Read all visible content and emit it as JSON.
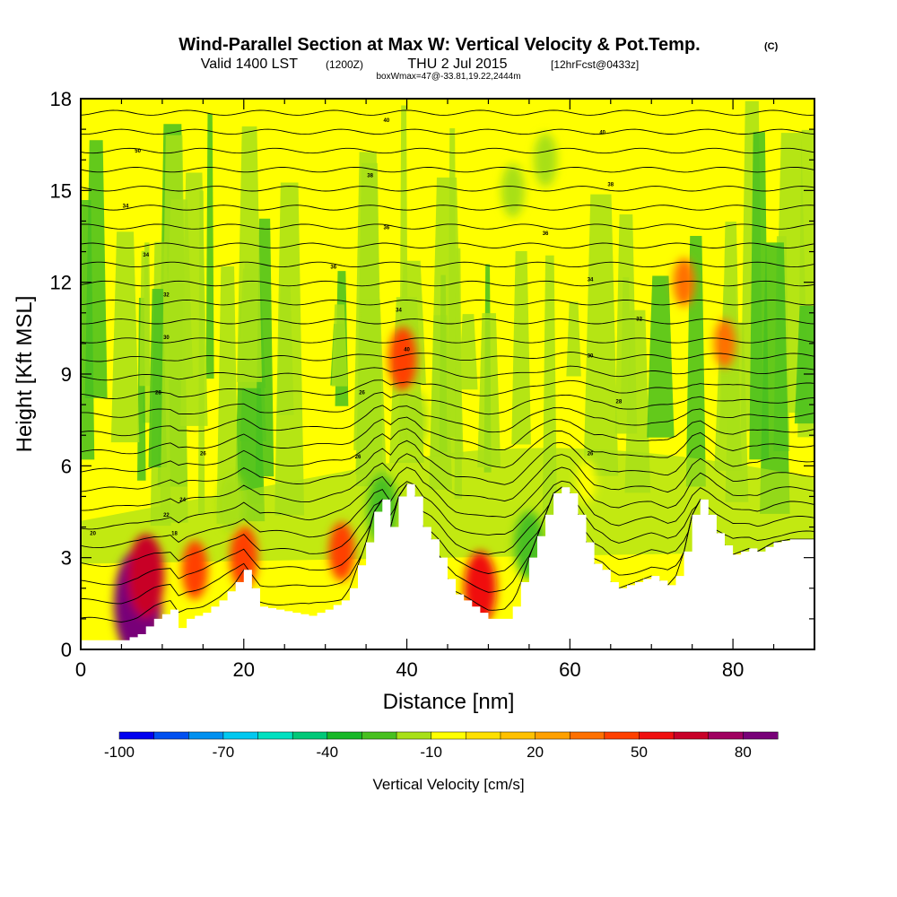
{
  "chart_data": {
    "type": "heatmap",
    "title": "Wind-Parallel Section at Max W: Vertical Velocity & Pot.Temp.",
    "title_mark": "(C)",
    "subtitle_main": "Valid 1400 LST",
    "subtitle_z": "(1200Z)",
    "subtitle_date": "THU 2 Jul 2015",
    "subtitle_fcst": "[12hrFcst@0433z]",
    "box_info": "boxWmax=47@-33.81,19.22,2444m",
    "xlabel": "Distance [nm]",
    "ylabel": "Height [Kft MSL]",
    "xlim": [
      0,
      90
    ],
    "ylim": [
      0,
      18
    ],
    "x_ticks": [
      "0",
      "20",
      "40",
      "60",
      "80"
    ],
    "y_ticks": [
      "0",
      "3",
      "6",
      "9",
      "12",
      "15",
      "18"
    ],
    "colorbar": {
      "label": "Vertical Velocity [cm/s]",
      "tick_labels": [
        "-100",
        "-70",
        "-40",
        "-10",
        "20",
        "50",
        "80"
      ],
      "colors": [
        "#0000f0",
        "#0050f0",
        "#0090f0",
        "#00c8f0",
        "#00e0c0",
        "#00c878",
        "#18b828",
        "#48c020",
        "#a8e018",
        "#ffff00",
        "#ffe000",
        "#ffc000",
        "#ffa000",
        "#ff7000",
        "#ff4000",
        "#f01010",
        "#c80028",
        "#a00060",
        "#780078"
      ]
    },
    "terrain_kft": [
      [
        0,
        0.3
      ],
      [
        5,
        0.3
      ],
      [
        7,
        0.5
      ],
      [
        9,
        1.0
      ],
      [
        11,
        1.3
      ],
      [
        12,
        0.7
      ],
      [
        13,
        1.0
      ],
      [
        15,
        1.2
      ],
      [
        17,
        1.6
      ],
      [
        19,
        2.2
      ],
      [
        20,
        2.6
      ],
      [
        21,
        2.0
      ],
      [
        22,
        1.4
      ],
      [
        24,
        1.3
      ],
      [
        26,
        1.2
      ],
      [
        28,
        1.1
      ],
      [
        30,
        1.3
      ],
      [
        32,
        1.6
      ],
      [
        33,
        2.0
      ],
      [
        35,
        3.5
      ],
      [
        36,
        4.5
      ],
      [
        37,
        4.9
      ],
      [
        38,
        4.0
      ],
      [
        39,
        5.0
      ],
      [
        40,
        5.4
      ],
      [
        41,
        5.0
      ],
      [
        42,
        4.0
      ],
      [
        43,
        3.6
      ],
      [
        44,
        3.0
      ],
      [
        45,
        2.3
      ],
      [
        46,
        1.8
      ],
      [
        47,
        1.6
      ],
      [
        48,
        1.4
      ],
      [
        49,
        1.2
      ],
      [
        50,
        1.0
      ],
      [
        52,
        1.0
      ],
      [
        53,
        1.4
      ],
      [
        54,
        2.2
      ],
      [
        55,
        3.0
      ],
      [
        56,
        3.7
      ],
      [
        57,
        4.4
      ],
      [
        58,
        5.1
      ],
      [
        59,
        5.3
      ],
      [
        60,
        5.1
      ],
      [
        61,
        4.4
      ],
      [
        62,
        3.5
      ],
      [
        63,
        2.8
      ],
      [
        64,
        2.6
      ],
      [
        65,
        2.2
      ],
      [
        66,
        2.0
      ],
      [
        68,
        2.2
      ],
      [
        70,
        2.4
      ],
      [
        72,
        2.1
      ],
      [
        73,
        2.4
      ],
      [
        74,
        3.2
      ],
      [
        75,
        4.4
      ],
      [
        76,
        4.9
      ],
      [
        77,
        4.4
      ],
      [
        78,
        3.8
      ],
      [
        79,
        3.4
      ],
      [
        80,
        3.1
      ],
      [
        82,
        3.3
      ],
      [
        83,
        3.2
      ],
      [
        85,
        3.5
      ],
      [
        87,
        3.6
      ],
      [
        90,
        3.6
      ]
    ],
    "velocity_cores": [
      {
        "x": 7,
        "y": 1.5,
        "value": 80
      },
      {
        "x": 8,
        "y": 2.4,
        "value": 55
      },
      {
        "x": 14,
        "y": 2.6,
        "value": 30
      },
      {
        "x": 20,
        "y": 3.0,
        "value": 35
      },
      {
        "x": 32,
        "y": 3.2,
        "value": 30
      },
      {
        "x": 39.5,
        "y": 9.5,
        "value": 35
      },
      {
        "x": 49,
        "y": 2.0,
        "value": 45
      },
      {
        "x": 18.5,
        "y": 4.8,
        "value": -30
      },
      {
        "x": 37,
        "y": 4.6,
        "value": -40
      },
      {
        "x": 41,
        "y": 7.5,
        "value": -30
      },
      {
        "x": 55,
        "y": 3.4,
        "value": -40
      },
      {
        "x": 53,
        "y": 15,
        "value": -25
      },
      {
        "x": 57,
        "y": 16,
        "value": -25
      },
      {
        "x": 62,
        "y": 5.5,
        "value": -15
      },
      {
        "x": 79,
        "y": 10,
        "value": 20
      },
      {
        "x": 74,
        "y": 12,
        "value": 20
      }
    ],
    "theta_labels": [
      {
        "x": 7,
        "y": 16.3,
        "text": "50"
      },
      {
        "x": 5.5,
        "y": 14.5,
        "text": "34"
      },
      {
        "x": 8,
        "y": 12.9,
        "text": "34"
      },
      {
        "x": 10.5,
        "y": 11.6,
        "text": "32"
      },
      {
        "x": 10.5,
        "y": 10.2,
        "text": "30"
      },
      {
        "x": 9.5,
        "y": 8.4,
        "text": "28"
      },
      {
        "x": 15,
        "y": 6.4,
        "text": "26"
      },
      {
        "x": 12.5,
        "y": 4.9,
        "text": "24"
      },
      {
        "x": 10.5,
        "y": 4.4,
        "text": "22"
      },
      {
        "x": 11.5,
        "y": 3.8,
        "text": "18"
      },
      {
        "x": 1.5,
        "y": 3.8,
        "text": "20"
      },
      {
        "x": 37.5,
        "y": 17.3,
        "text": "40"
      },
      {
        "x": 35.5,
        "y": 15.5,
        "text": "38"
      },
      {
        "x": 37.5,
        "y": 13.8,
        "text": "36"
      },
      {
        "x": 31,
        "y": 12.5,
        "text": "36"
      },
      {
        "x": 39,
        "y": 11.1,
        "text": "34"
      },
      {
        "x": 40,
        "y": 9.8,
        "text": "40"
      },
      {
        "x": 34.5,
        "y": 8.4,
        "text": "26"
      },
      {
        "x": 34,
        "y": 6.3,
        "text": "26"
      },
      {
        "x": 64,
        "y": 16.9,
        "text": "40"
      },
      {
        "x": 65,
        "y": 15.2,
        "text": "38"
      },
      {
        "x": 57,
        "y": 13.6,
        "text": "36"
      },
      {
        "x": 62.5,
        "y": 12.1,
        "text": "34"
      },
      {
        "x": 68.5,
        "y": 10.8,
        "text": "32"
      },
      {
        "x": 62.5,
        "y": 9.6,
        "text": "30"
      },
      {
        "x": 66,
        "y": 8.1,
        "text": "28"
      },
      {
        "x": 62.5,
        "y": 6.4,
        "text": "26"
      }
    ]
  }
}
